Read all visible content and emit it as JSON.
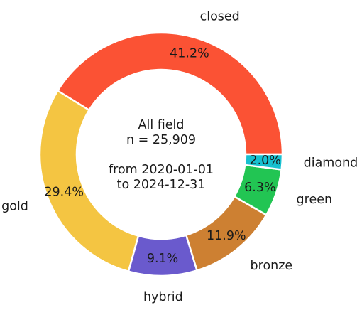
{
  "chart_data": {
    "type": "pie",
    "donut": true,
    "categories": [
      "closed",
      "gold",
      "hybrid",
      "bronze",
      "green",
      "diamond"
    ],
    "values": [
      41.2,
      29.4,
      9.1,
      11.9,
      6.3,
      2.0
    ],
    "value_labels": [
      "41.2%",
      "29.4%",
      "9.1%",
      "11.9%",
      "6.3%",
      "2.0%"
    ],
    "colors": [
      "#fb5234",
      "#f4c542",
      "#6a5acd",
      "#cd8032",
      "#22c553",
      "#17c0d0"
    ],
    "center_text": {
      "line1": "All field",
      "line2": "n = 25,909",
      "line3": "from 2020-01-01",
      "line4": "to 2024-12-31"
    },
    "start_angle_deg": 0,
    "direction": "counterclockwise",
    "legend": "none"
  }
}
